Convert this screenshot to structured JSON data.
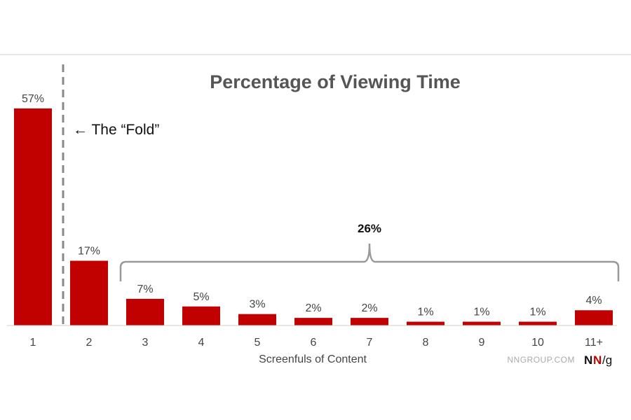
{
  "chart_data": {
    "type": "bar",
    "title": "Percentage of Viewing Time",
    "xlabel": "Screenfuls of Content",
    "ylabel": "",
    "categories": [
      "1",
      "2",
      "3",
      "4",
      "5",
      "6",
      "7",
      "8",
      "9",
      "10",
      "11+"
    ],
    "values": [
      57,
      17,
      7,
      5,
      3,
      2,
      2,
      1,
      1,
      1,
      4
    ],
    "value_labels": [
      "57%",
      "17%",
      "7%",
      "5%",
      "3%",
      "2%",
      "2%",
      "1%",
      "1%",
      "1%",
      "4%"
    ],
    "ylim": [
      0,
      60
    ],
    "grid": false,
    "bar_color": "#c10000",
    "annotations": {
      "fold_label": "← The “Fold”",
      "fold_after_category": "1",
      "bracket_label": "26%",
      "bracket_from": "3",
      "bracket_to": "11+"
    }
  },
  "branding": {
    "site": "NNGROUP.COM",
    "logo_n1": "N",
    "logo_n2": "N",
    "logo_g": "/g"
  },
  "colors": {
    "bar": "#c10000",
    "title": "#555555",
    "text": "#444444",
    "bracket": "#999999",
    "rule": "#cccccc"
  }
}
